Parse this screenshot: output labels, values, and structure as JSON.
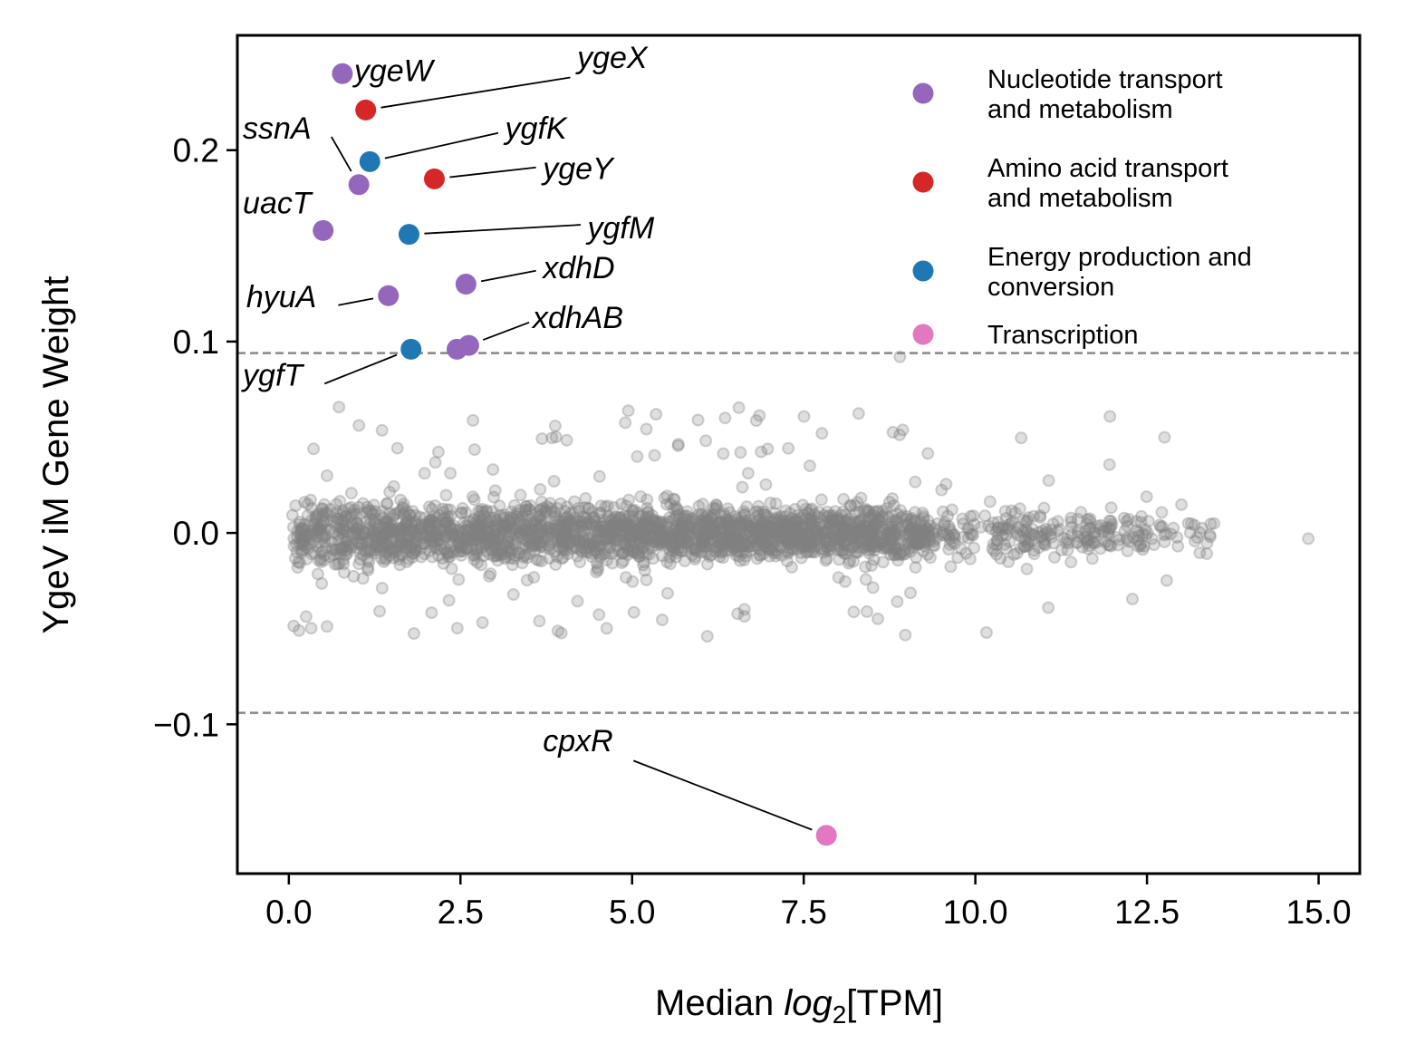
{
  "chart_data": {
    "type": "scatter",
    "xlabel_prefix": "Median ",
    "xlabel_math": "log",
    "xlabel_sub": "2",
    "xlabel_suffix": "[TPM]",
    "ylabel": "YgeV iM Gene Weight",
    "xlim": [
      -0.75,
      15.6
    ],
    "ylim": [
      -0.178,
      0.26
    ],
    "x_ticks": [
      0.0,
      2.5,
      5.0,
      7.5,
      10.0,
      12.5,
      15.0
    ],
    "x_tick_labels": [
      "0.0",
      "2.5",
      "5.0",
      "7.5",
      "10.0",
      "12.5",
      "15.0"
    ],
    "y_ticks": [
      -0.1,
      0.0,
      0.1,
      0.2
    ],
    "y_tick_labels": [
      "−0.1",
      "0.0",
      "0.1",
      "0.2"
    ],
    "threshold": 0.094,
    "grid": false,
    "legend_position": "top-right",
    "background_color": "#808080",
    "categories": [
      {
        "name": "Nucleotide transport\nand metabolism",
        "color": "#9467bd"
      },
      {
        "name": "Amino acid transport\nand metabolism",
        "color": "#d62728"
      },
      {
        "name": "Energy production and\nconversion",
        "color": "#1f77b4"
      },
      {
        "name": "Transcription",
        "color": "#e377c2"
      }
    ],
    "highlighted": [
      {
        "gene": "ygeW",
        "x": 0.78,
        "y": 0.24,
        "category": 0
      },
      {
        "gene": "ygeX",
        "x": 1.12,
        "y": 0.221,
        "category": 1
      },
      {
        "gene": "ygfK",
        "x": 1.18,
        "y": 0.194,
        "category": 2
      },
      {
        "gene": "ssnA",
        "x": 1.02,
        "y": 0.182,
        "category": 0
      },
      {
        "gene": "ygeY",
        "x": 2.12,
        "y": 0.185,
        "category": 1
      },
      {
        "gene": "uacT",
        "x": 0.5,
        "y": 0.158,
        "category": 0
      },
      {
        "gene": "ygfM",
        "x": 1.75,
        "y": 0.156,
        "category": 2
      },
      {
        "gene": "xdhD",
        "x": 2.58,
        "y": 0.13,
        "category": 0
      },
      {
        "gene": "hyuA",
        "x": 1.45,
        "y": 0.124,
        "category": 0
      },
      {
        "gene": "xdhAB",
        "x": 2.62,
        "y": 0.098,
        "category": 0
      },
      {
        "gene": "xdhAB",
        "x": 2.45,
        "y": 0.096,
        "category": 0
      },
      {
        "gene": "ygfT",
        "x": 1.78,
        "y": 0.096,
        "category": 2
      },
      {
        "gene": "cpxR",
        "x": 7.83,
        "y": -0.158,
        "category": 3
      }
    ],
    "annotations": [
      {
        "text": "ygeW",
        "gene": "ygeW",
        "tx": 0.95,
        "ty": 0.236,
        "line": false
      },
      {
        "text": "ygeX",
        "gene": "ygeX",
        "tx": 4.2,
        "ty": 0.243,
        "line": true,
        "lx": 4.1,
        "ly": 0.238
      },
      {
        "text": "ygfK",
        "gene": "ygfK",
        "tx": 3.15,
        "ty": 0.206,
        "line": true,
        "lx": 3.05,
        "ly": 0.209
      },
      {
        "text": "ssnA",
        "gene": "ssnA",
        "tx": -0.67,
        "ty": 0.206,
        "line": true,
        "lx": 0.62,
        "ly": 0.207
      },
      {
        "text": "ygeY",
        "gene": "ygeY",
        "tx": 3.7,
        "ty": 0.185,
        "line": true,
        "lx": 3.6,
        "ly": 0.191
      },
      {
        "text": "uacT",
        "gene": "uacT",
        "tx": -0.67,
        "ty": 0.167,
        "line": false
      },
      {
        "text": "ygfM",
        "gene": "ygfM",
        "tx": 4.35,
        "ty": 0.154,
        "line": true,
        "lx": 4.25,
        "ly": 0.161
      },
      {
        "text": "xdhD",
        "gene": "xdhD",
        "tx": 3.7,
        "ty": 0.133,
        "line": true,
        "lx": 3.6,
        "ly": 0.137
      },
      {
        "text": "hyuA",
        "gene": "hyuA",
        "tx": -0.62,
        "ty": 0.118,
        "line": true,
        "lx": 0.72,
        "ly": 0.119
      },
      {
        "text": "xdhAB",
        "gene": "xdhAB",
        "tx": 3.55,
        "ty": 0.107,
        "line": true,
        "lx": 3.5,
        "ly": 0.11
      },
      {
        "text": "ygfT",
        "gene": "ygfT",
        "tx": -0.67,
        "ty": 0.077,
        "line": true,
        "lx": 0.52,
        "ly": 0.078
      },
      {
        "text": "cpxR",
        "gene": "cpxR",
        "tx": 3.7,
        "ty": -0.114,
        "line": true,
        "lx": 5.02,
        "ly": -0.119
      }
    ]
  }
}
